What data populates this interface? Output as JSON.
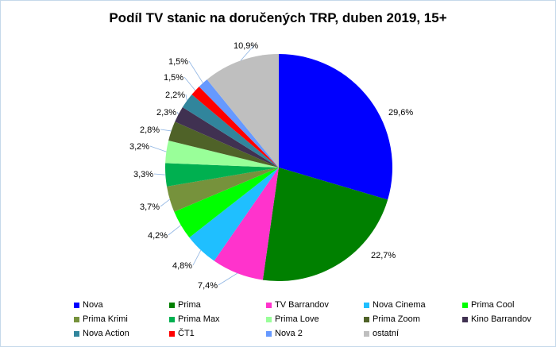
{
  "chart_data": {
    "type": "pie",
    "title": "Podíl TV stanic na doručených TRP, duben 2019, 15+",
    "legend_position": "bottom",
    "slices": [
      {
        "name": "Nova",
        "value": 29.6,
        "label": "29,6%",
        "color": "#0000FF"
      },
      {
        "name": "Prima",
        "value": 22.7,
        "label": "22,7%",
        "color": "#008000"
      },
      {
        "name": "TV Barrandov",
        "value": 7.4,
        "label": "7,4%",
        "color": "#FF33CC"
      },
      {
        "name": "Nova Cinema",
        "value": 4.8,
        "label": "4,8%",
        "color": "#1FBFFF"
      },
      {
        "name": "Prima Cool",
        "value": 4.2,
        "label": "4,2%",
        "color": "#00FF00"
      },
      {
        "name": "Prima Krimi",
        "value": 3.7,
        "label": "3,7%",
        "color": "#76923C"
      },
      {
        "name": "Prima Max",
        "value": 3.3,
        "label": "3,3%",
        "color": "#00B050"
      },
      {
        "name": "Prima Love",
        "value": 3.2,
        "label": "3,2%",
        "color": "#99FF99"
      },
      {
        "name": "Prima Zoom",
        "value": 2.8,
        "label": "2,8%",
        "color": "#4F6228"
      },
      {
        "name": "Kino Barrandov",
        "value": 2.3,
        "label": "2,3%",
        "color": "#403151"
      },
      {
        "name": "Nova Action",
        "value": 2.2,
        "label": "2,2%",
        "color": "#31859C"
      },
      {
        "name": "ČT1",
        "value": 1.5,
        "label": "1,5%",
        "color": "#FF0000"
      },
      {
        "name": "Nova 2",
        "value": 1.5,
        "label": "1,5%",
        "color": "#6699FF"
      },
      {
        "name": "ostatní",
        "value": 10.9,
        "label": "10,9%",
        "color": "#BFBFBF"
      }
    ]
  }
}
